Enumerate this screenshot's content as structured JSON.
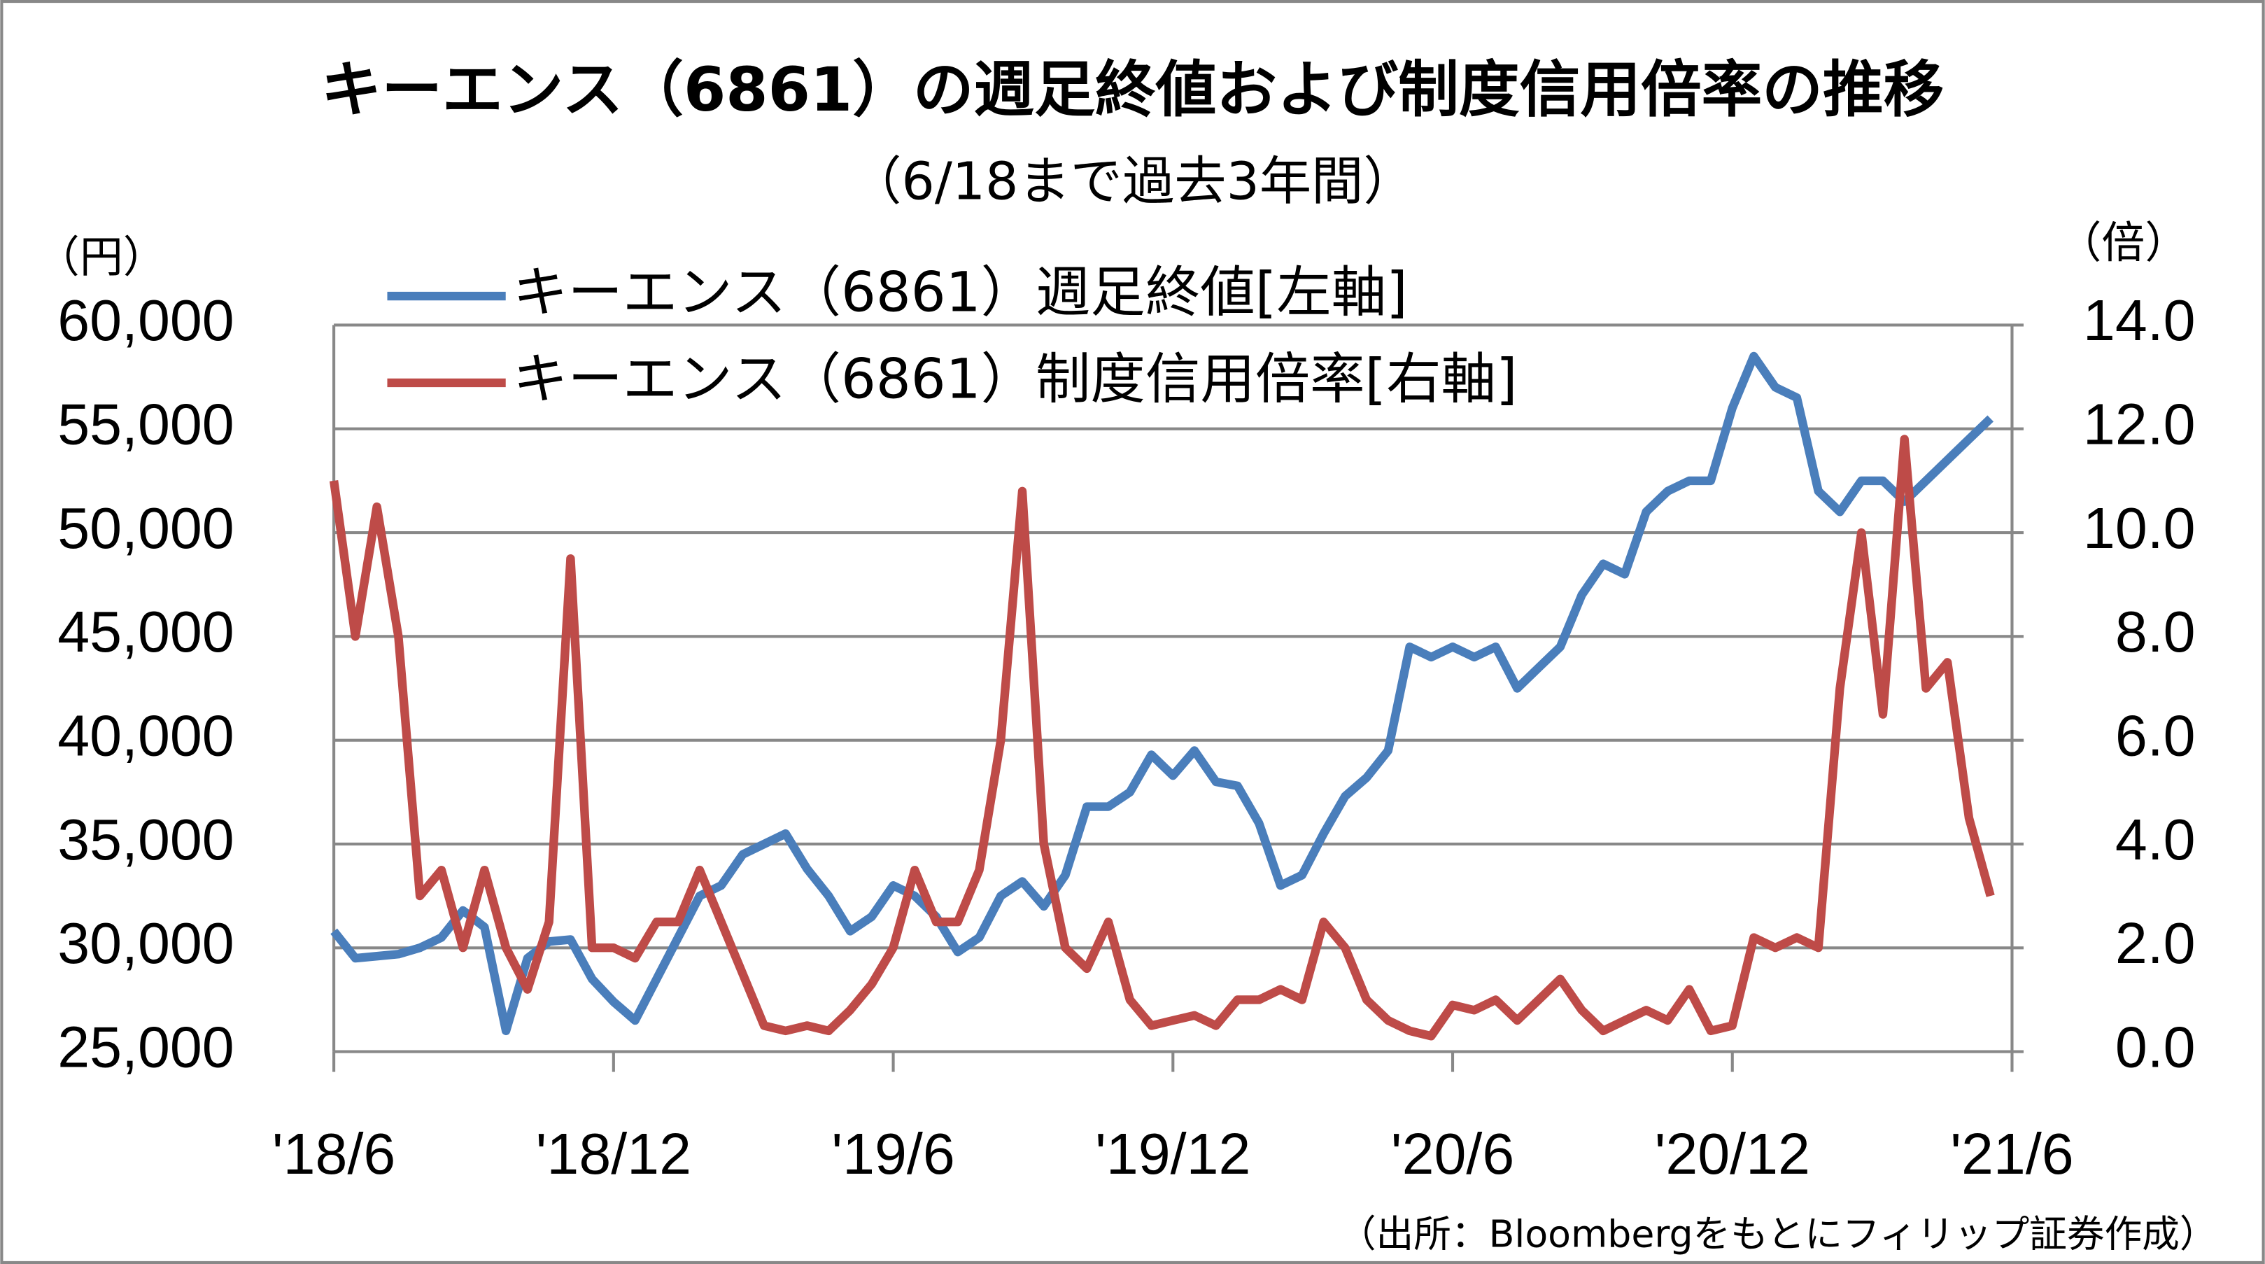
{
  "chart_data": {
    "type": "line",
    "title": "キーエンス（6861）の週足終値および制度信用倍率の推移",
    "subtitle": "（6/18まで過去3年間）",
    "y_label": "（円）",
    "y2_label": "（倍）",
    "source": "（出所：Bloombergをもとにフィリップ証券作成）",
    "categories": [
      "'18/6",
      null,
      null,
      null,
      null,
      null,
      null,
      null,
      null,
      null,
      null,
      null,
      null,
      "'18/12",
      null,
      null,
      null,
      null,
      null,
      null,
      null,
      null,
      null,
      null,
      null,
      null,
      "'19/6",
      null,
      null,
      null,
      null,
      null,
      null,
      null,
      null,
      null,
      null,
      null,
      null,
      "'19/12",
      null,
      null,
      null,
      null,
      null,
      null,
      null,
      null,
      null,
      null,
      null,
      null,
      "'20/6",
      null,
      null,
      null,
      null,
      null,
      null,
      null,
      null,
      null,
      null,
      null,
      null,
      "'20/12",
      null,
      null,
      null,
      null,
      null,
      null,
      null,
      null,
      null,
      null,
      null,
      null,
      "'21/6"
    ],
    "series": [
      {
        "name": "キーエンス（6861）週足終値[左軸]",
        "color": "#4a7ebb",
        "values": [
          30800,
          29500,
          29600,
          29700,
          30000,
          30500,
          31800,
          31000,
          26000,
          29500,
          30300,
          30400,
          28500,
          27400,
          26500,
          28500,
          30500,
          32500,
          33000,
          34500,
          35000,
          35500,
          33800,
          32500,
          30800,
          31500,
          33000,
          32500,
          31500,
          29800,
          30500,
          32500,
          33200,
          32000,
          33500,
          36800,
          36800,
          37500,
          39300,
          38300,
          39500,
          38000,
          37800,
          36000,
          33000,
          33500,
          35500,
          37300,
          38200,
          39500,
          44500,
          44000,
          44500,
          44000,
          44500,
          42500,
          43500,
          44500,
          47000,
          48500,
          48000,
          51000,
          52000,
          52500,
          52500,
          56000,
          58500,
          57000,
          56500,
          52000,
          51000,
          52500,
          52500,
          51500,
          52500,
          53500,
          54500,
          55500,
          null
        ]
      },
      {
        "name": "キーエンス（6861）制度信用倍率[右軸]",
        "color": "#be4b48",
        "axis": "y2",
        "values": [
          11.0,
          8.0,
          10.5,
          8.0,
          3.0,
          3.5,
          2.0,
          3.5,
          2.0,
          1.2,
          2.5,
          9.5,
          2.0,
          2.0,
          1.8,
          2.5,
          2.5,
          3.5,
          2.5,
          1.5,
          0.5,
          0.4,
          0.5,
          0.4,
          0.8,
          1.3,
          2.0,
          3.5,
          2.5,
          2.5,
          3.5,
          6.0,
          10.8,
          4.0,
          2.0,
          1.6,
          2.5,
          1.0,
          0.5,
          0.6,
          0.7,
          0.5,
          1.0,
          1.0,
          1.2,
          1.0,
          2.5,
          2.0,
          1.0,
          0.6,
          0.4,
          0.3,
          0.9,
          0.8,
          1.0,
          0.6,
          1.0,
          1.4,
          0.8,
          0.4,
          0.6,
          0.8,
          0.6,
          1.2,
          0.4,
          0.5,
          2.2,
          2.0,
          2.2,
          2.0,
          7.0,
          10.0,
          6.5,
          11.8,
          7.0,
          7.5,
          4.5,
          3.0,
          null
        ]
      }
    ],
    "ylim": [
      25000,
      60000
    ],
    "yticks": [
      {
        "value": 25000,
        "label": "25,000"
      },
      {
        "value": 30000,
        "label": "30,000"
      },
      {
        "value": 35000,
        "label": "35,000"
      },
      {
        "value": 40000,
        "label": "40,000"
      },
      {
        "value": 45000,
        "label": "45,000"
      },
      {
        "value": 50000,
        "label": "50,000"
      },
      {
        "value": 55000,
        "label": "55,000"
      },
      {
        "value": 60000,
        "label": "60,000"
      }
    ],
    "y2lim": [
      0,
      14
    ],
    "y2ticks": [
      {
        "value": 0,
        "label": "0.0"
      },
      {
        "value": 2,
        "label": "2.0"
      },
      {
        "value": 4,
        "label": "4.0"
      },
      {
        "value": 6,
        "label": "6.0"
      },
      {
        "value": 8,
        "label": "8.0"
      },
      {
        "value": 10,
        "label": "10.0"
      },
      {
        "value": 12,
        "label": "12.0"
      },
      {
        "value": 14,
        "label": "14.0"
      }
    ],
    "grid": true,
    "legend": "top-left"
  }
}
